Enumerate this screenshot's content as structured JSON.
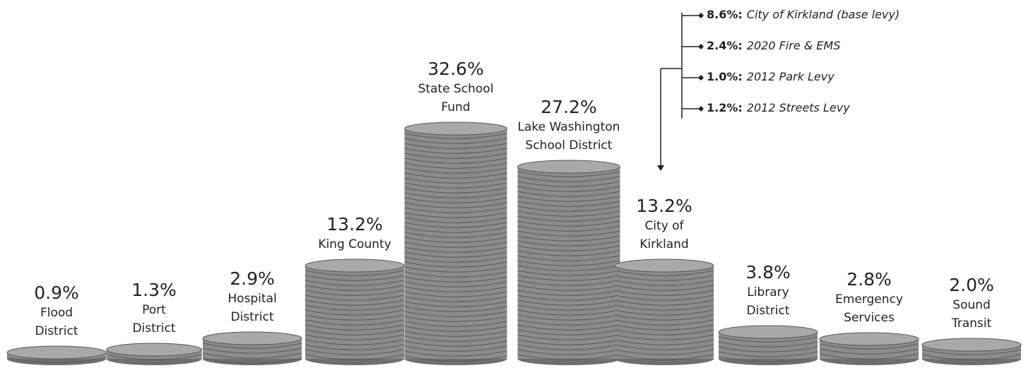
{
  "chart_data": {
    "type": "pictorial-bar",
    "categories": [
      "Flood District",
      "Port District",
      "Hospital District",
      "King County",
      "State School Fund",
      "Lake Washington School District",
      "City of Kirkland",
      "Library District",
      "Emergency Services",
      "Sound Transit"
    ],
    "values": [
      0.9,
      1.3,
      2.9,
      13.2,
      32.6,
      27.2,
      13.2,
      3.8,
      2.8,
      2.0
    ],
    "value_labels": [
      "0.9%",
      "1.3%",
      "2.9%",
      "13.2%",
      "32.6%",
      "27.2%",
      "13.2%",
      "3.8%",
      "2.8%",
      "2.0%"
    ],
    "color": "#8c8c8c",
    "breakdown": {
      "values": [
        8.6,
        2.4,
        1.0,
        1.2
      ],
      "value_labels": [
        "8.6%:",
        "2.4%:",
        "1.0%:",
        "1.2%:"
      ],
      "labels": [
        "City of Kirkland (base levy)",
        "2020 Fire & EMS",
        "2012 Park Levy",
        "2012 Streets Levy"
      ]
    }
  }
}
